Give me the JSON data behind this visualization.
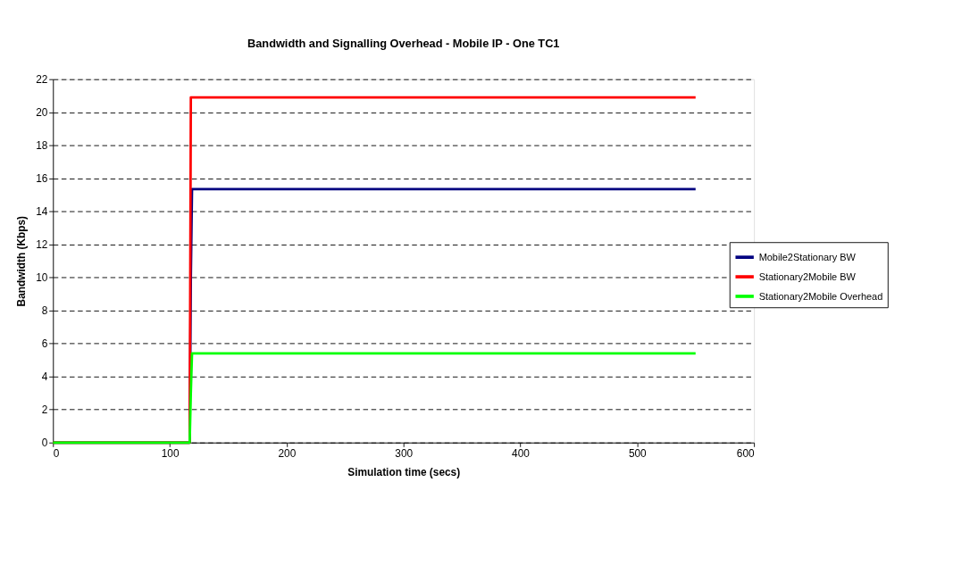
{
  "chart_data": {
    "type": "line",
    "title": "Bandwidth and Signalling Overhead - Mobile IP - One TC1",
    "xlabel": "Simulation time (secs)",
    "ylabel": "Bandwidth (Kbps)",
    "x": [
      0,
      117,
      118,
      119,
      320,
      520,
      550
    ],
    "series": [
      {
        "name": "Mobile2Stationary BW",
        "color": "#000080",
        "values": [
          0,
          0,
          10,
          15.35,
          15.35,
          15.35,
          15.35
        ]
      },
      {
        "name": "Stationary2Mobile BW",
        "color": "#ff0000",
        "values": [
          0,
          0,
          20.9,
          20.9,
          20.9,
          20.9,
          20.9
        ]
      },
      {
        "name": "Stationary2Mobile Overhead",
        "color": "#00ff00",
        "values": [
          0,
          0,
          3,
          5.4,
          5.4,
          5.4,
          5.4
        ]
      }
    ],
    "xlim": [
      0,
      600
    ],
    "xticks": [
      0,
      100,
      200,
      300,
      400,
      500,
      600
    ],
    "ylim": [
      0,
      22
    ],
    "yticks": [
      0,
      2,
      4,
      6,
      8,
      10,
      12,
      14,
      16,
      18,
      20,
      22
    ],
    "grid": "y",
    "legend": "right",
    "marker": "none",
    "line_style": "solid"
  }
}
